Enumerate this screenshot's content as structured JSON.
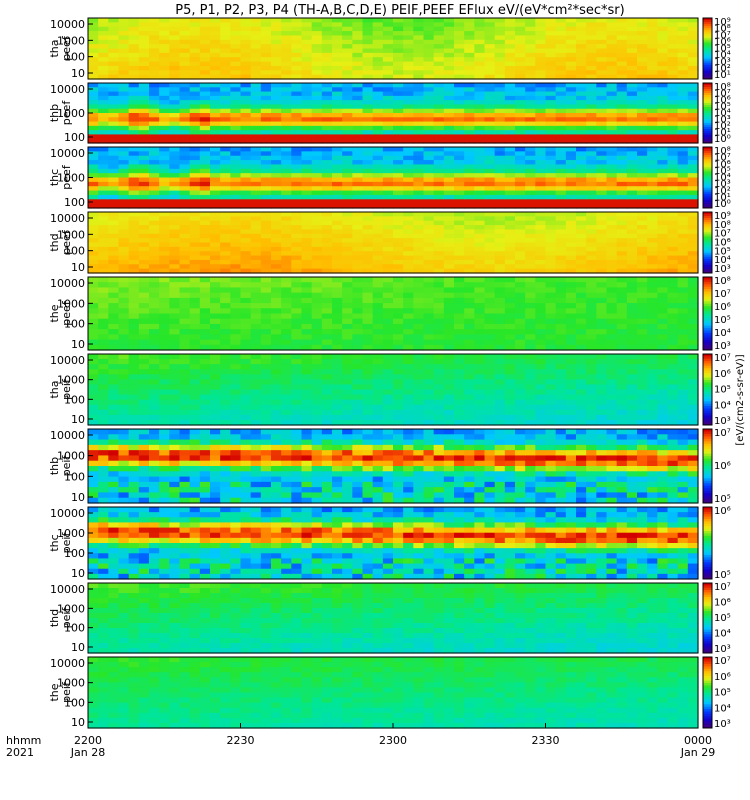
{
  "chart_data": {
    "type": "heatmap",
    "title": "P5, P1, P2, P3, P4 (TH-A,B,C,D,E) PEIF,PEEF EFlux eV/(eV*cm²*sec*sr)",
    "x_axis": {
      "ticks": [
        {
          "value": 0,
          "label": "2200"
        },
        {
          "value": 30,
          "label": "2230"
        },
        {
          "value": 60,
          "label": "2300"
        },
        {
          "value": 90,
          "label": "2330"
        },
        {
          "value": 120,
          "label": "0000"
        }
      ],
      "row2_left": "Jan 28",
      "row2_right": "Jan 29",
      "left_label_top": "hhmm",
      "left_label_bottom": "2021",
      "range_minutes": [
        0,
        120
      ]
    },
    "colorbar_unit": "[eV/(cm2-s-sr-eV)]",
    "panels": [
      {
        "id": "tha_peef",
        "label_top": "tha",
        "label_bottom": "peef",
        "yticks": [
          "10000",
          "1000",
          "100",
          "10"
        ],
        "cticks": [
          "10⁹",
          "10⁸",
          "10⁷",
          "10⁶",
          "10⁵",
          "10⁴",
          "10³",
          "10²",
          "10¹"
        ],
        "style": "e_steady"
      },
      {
        "id": "thb_peef",
        "label_top": "thb",
        "label_bottom": "peef",
        "yticks": [
          "10000",
          "1000",
          "100"
        ],
        "cticks": [
          "10⁸",
          "10⁷",
          "10⁶",
          "10⁵",
          "10⁴",
          "10³",
          "10²",
          "10¹",
          "10⁰"
        ],
        "style": "e_banded"
      },
      {
        "id": "thc_peef",
        "label_top": "thc",
        "label_bottom": "peef",
        "yticks": [
          "10000",
          "1000",
          "100"
        ],
        "cticks": [
          "10⁸",
          "10⁷",
          "10⁶",
          "10⁵",
          "10⁴",
          "10³",
          "10²",
          "10¹",
          "10⁰"
        ],
        "style": "e_banded"
      },
      {
        "id": "thd_peef",
        "label_top": "thd",
        "label_bottom": "peef",
        "yticks": [
          "10000",
          "1000",
          "100",
          "10"
        ],
        "cticks": [
          "10⁹",
          "10⁸",
          "10⁷",
          "10⁶",
          "10⁵",
          "10⁴",
          "10³"
        ],
        "style": "e_warm"
      },
      {
        "id": "the_peef",
        "label_top": "the",
        "label_bottom": "peef",
        "yticks": [
          "10000",
          "1000",
          "100",
          "10"
        ],
        "cticks": [
          "10⁸",
          "10⁷",
          "10⁶",
          "10⁵",
          "10⁴",
          "10³"
        ],
        "style": "e_green"
      },
      {
        "id": "tha_peif",
        "label_top": "tha",
        "label_bottom": "peif",
        "yticks": [
          "10000",
          "1000",
          "100",
          "10"
        ],
        "cticks": [
          "10⁷",
          "10⁶",
          "10⁵",
          "10⁴",
          "10³"
        ],
        "style": "i_green"
      },
      {
        "id": "thb_peif",
        "label_top": "thb",
        "label_bottom": "peif",
        "yticks": [
          "10000",
          "1000",
          "100",
          "10"
        ],
        "cticks": [
          "10⁷",
          "10⁶",
          "10⁵"
        ],
        "style": "i_band"
      },
      {
        "id": "thc_peif",
        "label_top": "thc",
        "label_bottom": "peif",
        "yticks": [
          "10000",
          "1000",
          "100",
          "10"
        ],
        "cticks": [
          "10⁶",
          "10⁵"
        ],
        "style": "i_band"
      },
      {
        "id": "thd_peif",
        "label_top": "thd",
        "label_bottom": "peif",
        "yticks": [
          "10000",
          "1000",
          "100",
          "10"
        ],
        "cticks": [
          "10⁷",
          "10⁶",
          "10⁵",
          "10⁴",
          "10³"
        ],
        "style": "i_green"
      },
      {
        "id": "the_peif",
        "label_top": "the",
        "label_bottom": "peif",
        "yticks": [
          "10000",
          "1000",
          "100",
          "10"
        ],
        "cticks": [
          "10⁷",
          "10⁶",
          "10⁵",
          "10⁴",
          "10³"
        ],
        "style": "i_green_light"
      }
    ]
  }
}
